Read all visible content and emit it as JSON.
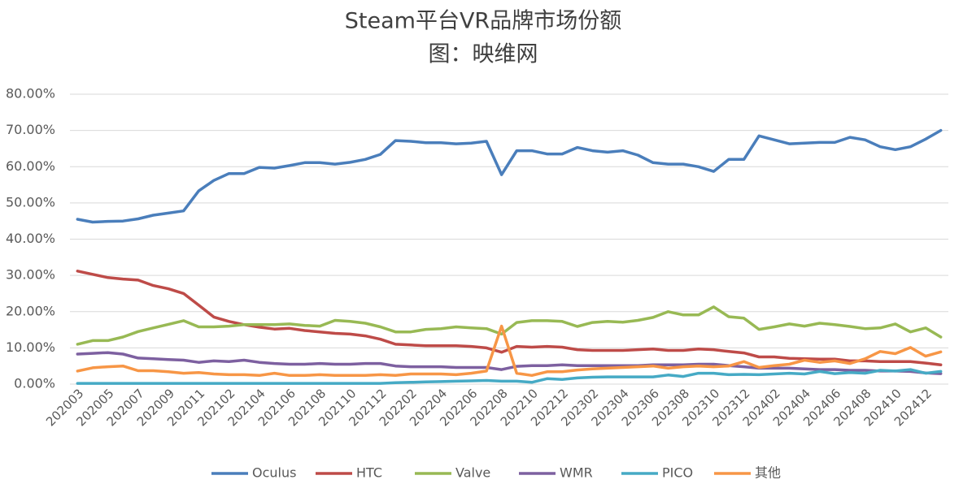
{
  "chart_data": {
    "type": "line",
    "title": "Steam平台VR品牌市场份额",
    "subtitle": "图：映维网",
    "categories": [
      "202003",
      null,
      "202005",
      null,
      "202007",
      null,
      "202009",
      null,
      "202011",
      null,
      "202102",
      null,
      "202104",
      null,
      "202106",
      null,
      "202108",
      null,
      "202110",
      null,
      "202112",
      null,
      "202202",
      null,
      "202204",
      null,
      "202206",
      null,
      "202208",
      null,
      "202210",
      null,
      "202212",
      null,
      "202302",
      null,
      "202304",
      null,
      "202306",
      null,
      "202308",
      null,
      "202310",
      null,
      "202312",
      null,
      "202402",
      null,
      "202404",
      null,
      "202406",
      null,
      "202408",
      null,
      "202410",
      null,
      "202412",
      null
    ],
    "series": [
      {
        "name": "Oculus",
        "color": "#4a7ebb",
        "values": [
          45.5,
          44.7,
          44.9,
          45.0,
          45.6,
          46.6,
          47.2,
          47.8,
          53.3,
          56.2,
          58.1,
          58.1,
          59.8,
          59.6,
          60.3,
          61.1,
          61.1,
          60.7,
          61.2,
          62.0,
          63.4,
          67.2,
          67.0,
          66.6,
          66.6,
          66.3,
          66.5,
          67.0,
          57.8,
          64.4,
          64.4,
          63.5,
          63.5,
          65.3,
          64.4,
          64.0,
          64.4,
          63.2,
          61.1,
          60.7,
          60.7,
          60.0,
          58.7,
          62.0,
          62.0,
          68.5,
          67.4,
          66.3,
          66.5,
          66.7,
          66.7,
          68.1,
          67.4,
          65.5,
          64.7,
          65.5,
          67.6,
          70.0
        ]
      },
      {
        "name": "HTC",
        "color": "#be4b48",
        "values": [
          31.2,
          30.3,
          29.4,
          29.0,
          28.7,
          27.2,
          26.3,
          25.0,
          21.8,
          18.5,
          17.3,
          16.4,
          15.7,
          15.2,
          15.4,
          14.8,
          14.4,
          14.0,
          13.8,
          13.3,
          12.4,
          11.0,
          10.8,
          10.6,
          10.6,
          10.6,
          10.4,
          10.0,
          8.8,
          10.4,
          10.2,
          10.4,
          10.2,
          9.5,
          9.3,
          9.3,
          9.3,
          9.5,
          9.7,
          9.3,
          9.3,
          9.7,
          9.5,
          9.0,
          8.6,
          7.5,
          7.5,
          7.1,
          7.0,
          6.9,
          6.9,
          6.4,
          6.4,
          6.2,
          6.2,
          6.2,
          5.8,
          5.3
        ]
      },
      {
        "name": "Valve",
        "color": "#98b954",
        "values": [
          11.0,
          12.0,
          12.0,
          13.0,
          14.5,
          15.5,
          16.5,
          17.5,
          15.8,
          15.8,
          16.0,
          16.4,
          16.4,
          16.4,
          16.6,
          16.2,
          16.0,
          17.6,
          17.3,
          16.8,
          15.8,
          14.4,
          14.4,
          15.1,
          15.3,
          15.8,
          15.5,
          15.3,
          13.8,
          17.0,
          17.5,
          17.5,
          17.3,
          15.9,
          17.0,
          17.3,
          17.1,
          17.6,
          18.4,
          20.0,
          19.1,
          19.1,
          21.3,
          18.6,
          18.2,
          15.1,
          15.8,
          16.6,
          16.0,
          16.8,
          16.4,
          15.9,
          15.3,
          15.5,
          16.6,
          14.4,
          15.5,
          13.0
        ]
      },
      {
        "name": "WMR",
        "color": "#7d60a0",
        "values": [
          8.3,
          8.5,
          8.7,
          8.3,
          7.2,
          7.0,
          6.8,
          6.6,
          6.0,
          6.4,
          6.2,
          6.6,
          6.0,
          5.7,
          5.5,
          5.5,
          5.7,
          5.5,
          5.5,
          5.7,
          5.7,
          5.0,
          4.8,
          4.8,
          4.8,
          4.6,
          4.6,
          4.6,
          4.0,
          4.9,
          5.1,
          5.1,
          5.3,
          5.1,
          5.1,
          5.1,
          5.1,
          5.1,
          5.3,
          5.3,
          5.3,
          5.5,
          5.5,
          5.1,
          4.8,
          4.4,
          4.4,
          4.4,
          4.2,
          4.0,
          4.0,
          3.8,
          3.8,
          3.6,
          3.6,
          3.5,
          3.1,
          2.9
        ]
      },
      {
        "name": "PICO",
        "color": "#46aac5",
        "values": [
          0.2,
          0.2,
          0.2,
          0.2,
          0.2,
          0.2,
          0.2,
          0.2,
          0.2,
          0.2,
          0.2,
          0.2,
          0.2,
          0.2,
          0.2,
          0.2,
          0.2,
          0.2,
          0.2,
          0.2,
          0.2,
          0.4,
          0.5,
          0.6,
          0.7,
          0.8,
          0.9,
          1.0,
          0.8,
          0.8,
          0.5,
          1.5,
          1.3,
          1.7,
          1.9,
          2.0,
          2.0,
          2.0,
          2.0,
          2.5,
          2.1,
          3.0,
          3.0,
          2.6,
          2.7,
          2.6,
          2.8,
          3.0,
          2.8,
          3.5,
          2.9,
          3.2,
          3.0,
          3.8,
          3.6,
          4.0,
          3.0,
          3.5
        ]
      },
      {
        "name": "其他",
        "color": "#f79646",
        "values": [
          3.6,
          4.5,
          4.8,
          5.0,
          3.7,
          3.7,
          3.4,
          3.0,
          3.2,
          2.8,
          2.6,
          2.6,
          2.4,
          3.0,
          2.4,
          2.4,
          2.6,
          2.4,
          2.4,
          2.4,
          2.6,
          2.4,
          2.8,
          2.8,
          2.8,
          2.6,
          3.0,
          3.6,
          16.0,
          3.0,
          2.4,
          3.4,
          3.4,
          3.9,
          4.2,
          4.4,
          4.6,
          4.8,
          5.0,
          4.4,
          4.8,
          5.0,
          4.8,
          5.0,
          6.2,
          4.6,
          5.1,
          5.5,
          6.6,
          6.0,
          6.4,
          5.7,
          7.0,
          9.0,
          8.4,
          10.1,
          7.7,
          8.9
        ]
      }
    ],
    "ylim": [
      0,
      80
    ],
    "yticks": [
      {
        "value": 0,
        "label": "0.00%"
      },
      {
        "value": 10,
        "label": "10.00%"
      },
      {
        "value": 20,
        "label": "20.00%"
      },
      {
        "value": 30,
        "label": "30.00%"
      },
      {
        "value": 40,
        "label": "40.00%"
      },
      {
        "value": 50,
        "label": "50.00%"
      },
      {
        "value": 60,
        "label": "60.00%"
      },
      {
        "value": 70,
        "label": "70.00%"
      },
      {
        "value": 80,
        "label": "80.00%"
      }
    ],
    "grid": true,
    "legend": "bottom"
  }
}
